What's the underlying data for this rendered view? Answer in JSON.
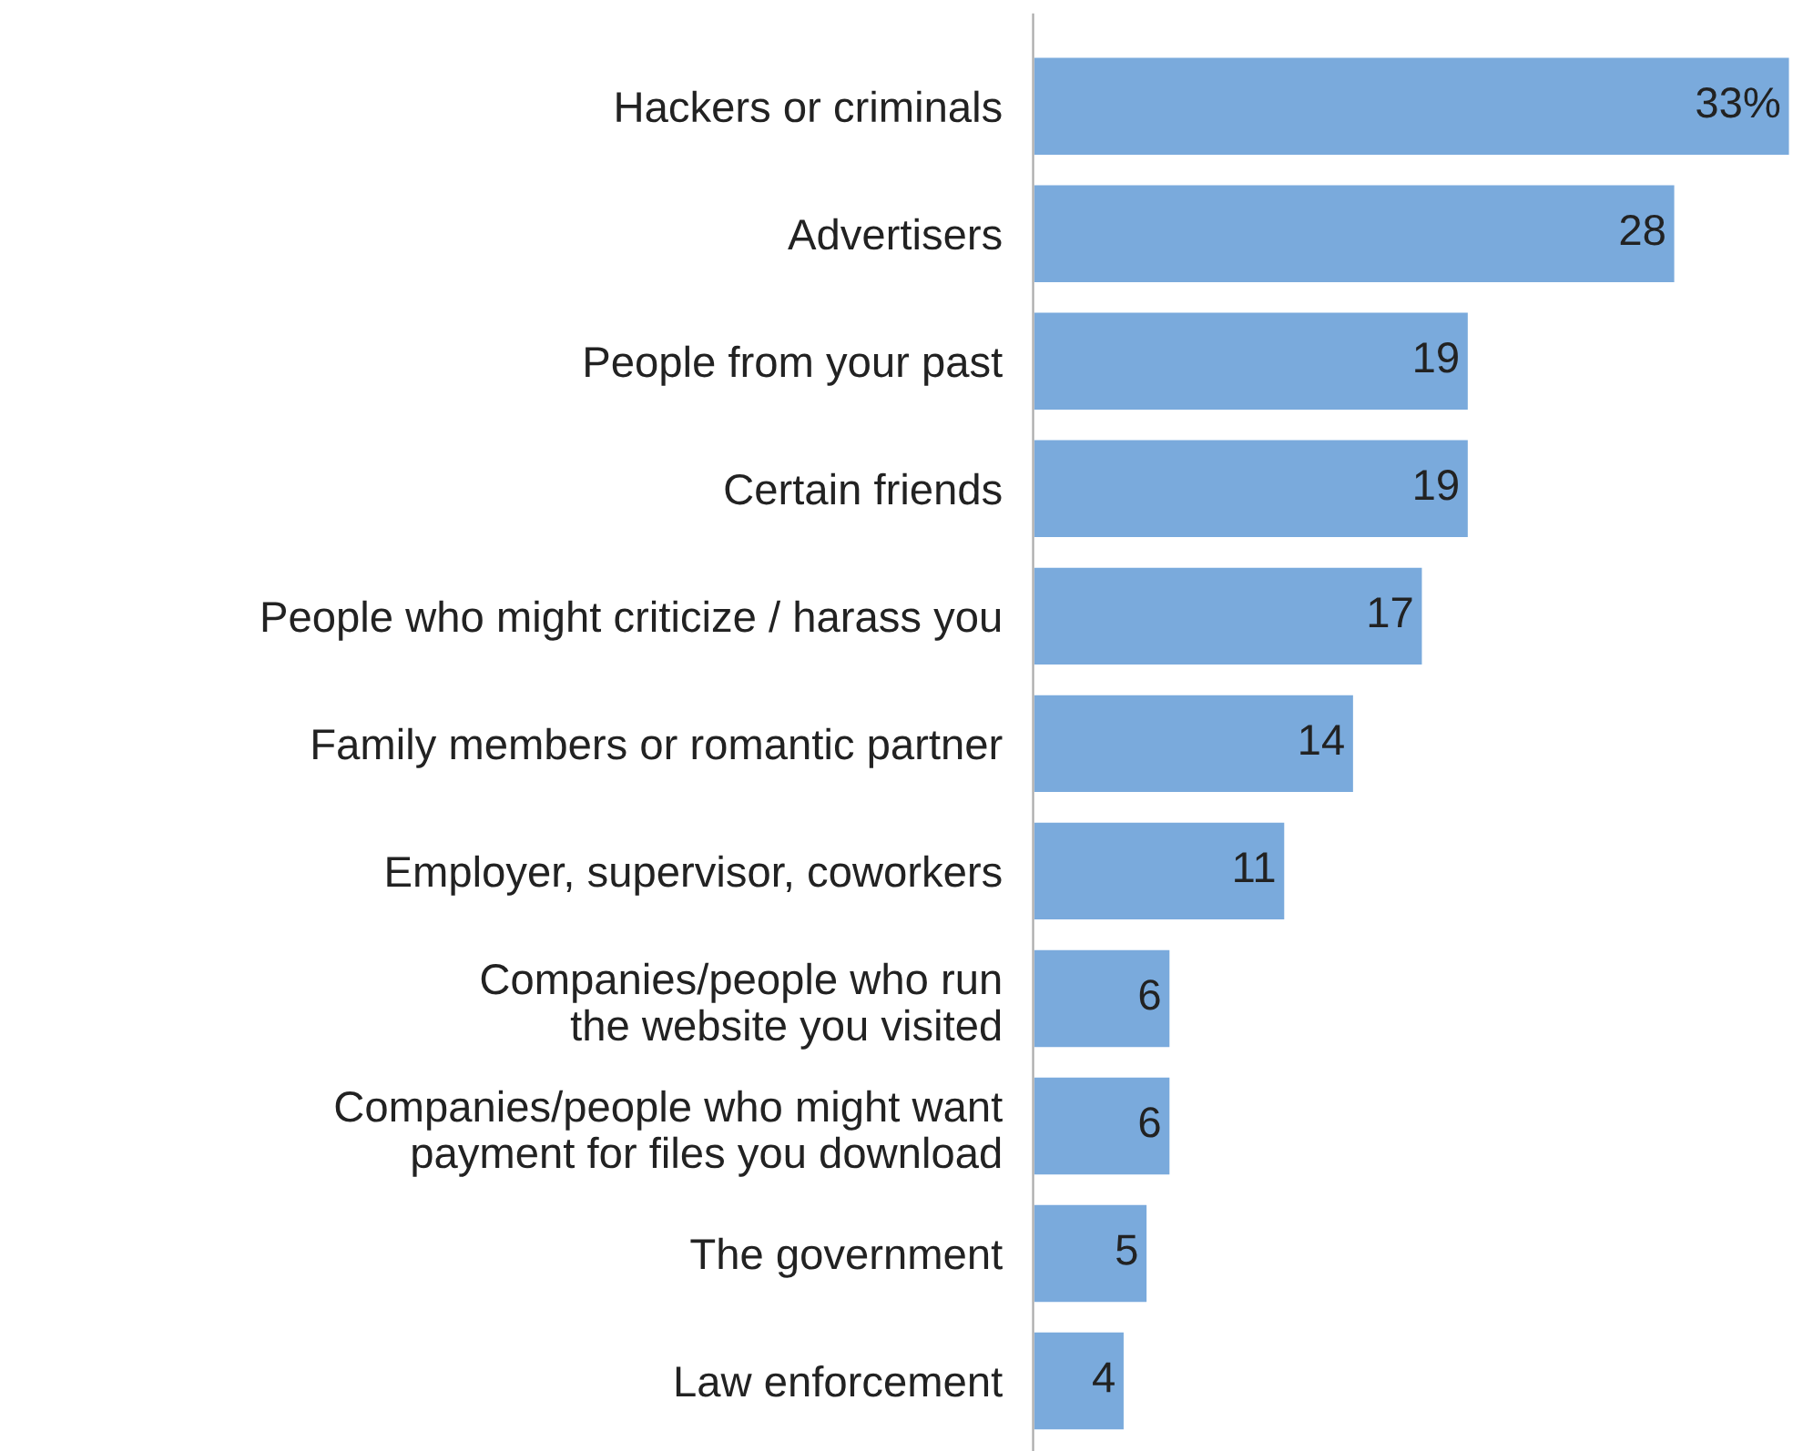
{
  "chart_data": {
    "type": "bar",
    "orientation": "horizontal",
    "categories": [
      "Hackers or criminals",
      "Advertisers",
      "People from your past",
      "Certain friends",
      "People who might criticize / harass you",
      "Family members or romantic partner",
      "Employer, supervisor, coworkers",
      "Companies/people who run\nthe website you visited",
      "Companies/people who might want\npayment for files you download",
      "The government",
      "Law enforcement"
    ],
    "values": [
      33,
      28,
      19,
      19,
      17,
      14,
      11,
      6,
      6,
      5,
      4
    ],
    "value_labels": [
      "33%",
      "28",
      "19",
      "19",
      "17",
      "14",
      "11",
      "6",
      "6",
      "5",
      "4"
    ],
    "color": "#7aaadc",
    "grid": false,
    "legend": false
  }
}
